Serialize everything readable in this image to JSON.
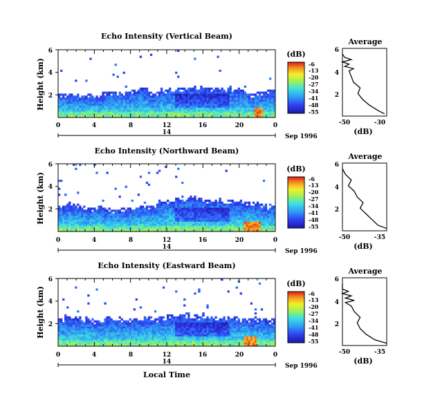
{
  "chart_data": [
    {
      "type": "heatmap",
      "title": "Echo Intensity (Vertical Beam)",
      "ylabel": "Height (km)",
      "x_ticks": [
        "0",
        "4",
        "8",
        "12",
        "16",
        "20",
        "0"
      ],
      "y_ticks": [
        "6",
        "4",
        "2"
      ],
      "xlim": [
        0,
        24
      ],
      "ylim": [
        0,
        6
      ],
      "date_day": "14",
      "date_label": "Sep 1996",
      "colorbar": {
        "unit": "(dB)",
        "labels": [
          "-6",
          "-13",
          "-20",
          "-27",
          "-34",
          "-41",
          "-48",
          "-55"
        ],
        "range": [
          -55,
          -6
        ]
      },
      "cloud_top_km": [
        2.1,
        2.1,
        2.1,
        2.1,
        2.1,
        2.3,
        2.3,
        2.2,
        2.4,
        2.6,
        2.2,
        2.5,
        2.6,
        2.7,
        2.6,
        2.7,
        2.7,
        2.6,
        2.6,
        2.6,
        2.4,
        2.2,
        2.3,
        2.5
      ],
      "near_surface_strong_hours": [
        21.8,
        22.6
      ],
      "average_profile": {
        "title": "Average",
        "xlabel": "(dB)",
        "x_ticks": [
          "-50",
          "-30"
        ],
        "xlim": [
          -50,
          -30
        ],
        "y_ticks": [
          "6",
          "4",
          "2"
        ],
        "ylim": [
          0,
          6
        ],
        "height": [
          0.2,
          0.5,
          1.0,
          1.5,
          2.0,
          2.5,
          3.0,
          3.5,
          4.0,
          4.2,
          4.4,
          4.6,
          4.8,
          5.0,
          5.2,
          5.5
        ],
        "db": [
          -31,
          -34,
          -38,
          -41,
          -43,
          -42,
          -45,
          -46,
          -47,
          -45,
          -49,
          -47,
          -50,
          -46,
          -49,
          -50
        ]
      }
    },
    {
      "type": "heatmap",
      "title": "Echo Intensity (Northward Beam)",
      "ylabel": "Height (km)",
      "x_ticks": [
        "0",
        "4",
        "8",
        "12",
        "16",
        "20",
        "0"
      ],
      "y_ticks": [
        "6",
        "4",
        "2"
      ],
      "xlim": [
        0,
        24
      ],
      "ylim": [
        0,
        6
      ],
      "date_day": "14",
      "date_label": "Sep 1996",
      "colorbar": {
        "unit": "(dB)",
        "labels": [
          "-6",
          "-13",
          "-20",
          "-27",
          "-34",
          "-41",
          "-48",
          "-55"
        ],
        "range": [
          -55,
          -6
        ]
      },
      "cloud_top_km": [
        2.4,
        2.5,
        2.3,
        2.2,
        2.2,
        2.0,
        2.0,
        2.1,
        2.2,
        2.3,
        2.4,
        2.6,
        2.9,
        3.1,
        3.1,
        3.0,
        2.9,
        2.9,
        2.8,
        2.8,
        2.7,
        2.6,
        2.5,
        2.3
      ],
      "near_surface_strong_hours": [
        20.5,
        22.5
      ],
      "average_profile": {
        "title": "Average",
        "xlabel": "(dB)",
        "x_ticks": [
          "-50",
          "-35"
        ],
        "xlim": [
          -50,
          -35
        ],
        "y_ticks": [
          "6",
          "4",
          "2"
        ],
        "ylim": [
          0,
          6
        ],
        "height": [
          0.2,
          0.5,
          1.0,
          1.5,
          2.0,
          2.5,
          3.0,
          3.5,
          4.0,
          4.5,
          5.0,
          5.5
        ],
        "db": [
          -35,
          -38,
          -40,
          -42,
          -44,
          -43,
          -45,
          -46,
          -48,
          -47,
          -49,
          -50
        ]
      }
    },
    {
      "type": "heatmap",
      "title": "Echo Intensity (Eastward Beam)",
      "ylabel": "Height (km)",
      "x_ticks": [
        "0",
        "4",
        "8",
        "12",
        "16",
        "20",
        "0"
      ],
      "y_ticks": [
        "6",
        "4",
        "2"
      ],
      "xlim": [
        0,
        24
      ],
      "ylim": [
        0,
        6
      ],
      "date_day": "14",
      "date_label": "Sep 1996",
      "xlabel": "Local Time",
      "colorbar": {
        "unit": "(dB)",
        "labels": [
          "-6",
          "-13",
          "-20",
          "-27",
          "-34",
          "-41",
          "-48",
          "-55"
        ],
        "range": [
          -55,
          -6
        ]
      },
      "cloud_top_km": [
        2.5,
        2.6,
        2.5,
        2.5,
        2.4,
        2.5,
        2.5,
        2.4,
        2.4,
        2.5,
        2.6,
        2.6,
        2.8,
        2.8,
        2.8,
        2.7,
        2.7,
        2.6,
        2.6,
        2.6,
        2.6,
        2.5,
        2.5,
        2.4
      ],
      "near_surface_strong_hours": [
        20.5,
        22.0
      ],
      "average_profile": {
        "title": "Average",
        "xlabel": "(dB)",
        "x_ticks": [
          "-50",
          "-35"
        ],
        "xlim": [
          -50,
          -35
        ],
        "y_ticks": [
          "6",
          "4",
          "2"
        ],
        "ylim": [
          0,
          6
        ],
        "height": [
          0.2,
          0.5,
          1.0,
          1.5,
          2.0,
          2.5,
          3.0,
          3.5,
          3.8,
          4.0,
          4.2,
          4.4,
          4.6,
          4.8,
          5.0,
          5.5
        ],
        "db": [
          -35,
          -39,
          -42,
          -44,
          -45,
          -44,
          -46,
          -47,
          -49,
          -46,
          -49,
          -47,
          -50,
          -48,
          -50,
          -50
        ]
      }
    }
  ]
}
